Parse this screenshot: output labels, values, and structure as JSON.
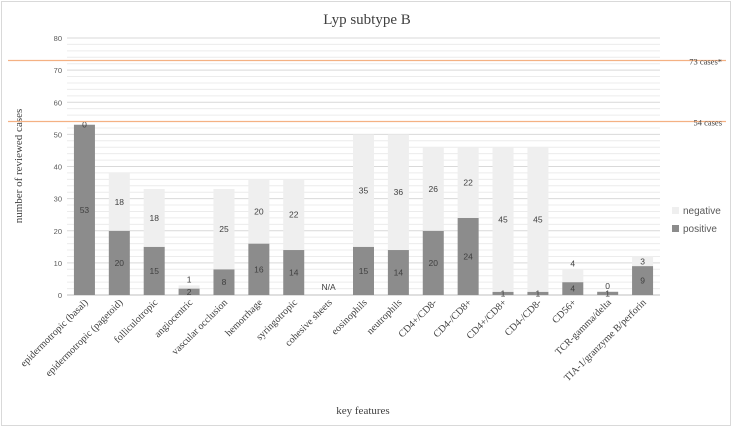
{
  "chart_data": {
    "type": "bar",
    "stacked": true,
    "title": "Lyp subtype B",
    "xlabel": "key features",
    "ylabel": "number of reviewed cases",
    "ylim": [
      0,
      80
    ],
    "y_ticks": [
      0,
      10,
      20,
      30,
      40,
      50,
      60,
      70,
      80
    ],
    "grid": "horizontal",
    "legend_position": "right",
    "categories": [
      "epidermotropic (basal)",
      "epidermotropic (pagetoid)",
      "folliculotropic",
      "angiocentric",
      "vascular occlusion",
      "hemorrhage",
      "syringotropic",
      "cohesive sheets",
      "eosinophils",
      "neutrophils",
      "CD4+/CD8-",
      "CD4-/CD8+",
      "CD4+/CD8+",
      "CD4-/CD8-",
      "CD56+",
      "TCR-gamma/delta",
      "TIA-1/granzyme B/perforin"
    ],
    "series": [
      {
        "name": "positive",
        "color": "#8c8c8c",
        "values": [
          53,
          20,
          15,
          2,
          8,
          16,
          14,
          null,
          15,
          14,
          20,
          24,
          1,
          1,
          4,
          1,
          9
        ],
        "labels": [
          "53",
          "20",
          "15",
          "2",
          "8",
          "16",
          "14",
          "",
          "15",
          "14",
          "20",
          "24",
          "1",
          "1",
          "4",
          "1",
          "9"
        ]
      },
      {
        "name": "negative",
        "color": "#efefef",
        "values": [
          0,
          18,
          18,
          1,
          25,
          20,
          22,
          null,
          35,
          36,
          26,
          22,
          45,
          45,
          4,
          0,
          3
        ],
        "labels": [
          "0",
          "18",
          "18",
          "1",
          "25",
          "20",
          "22",
          "",
          "35",
          "36",
          "26",
          "22",
          "45",
          "45",
          "4",
          "0",
          "3"
        ]
      }
    ],
    "special_labels": [
      {
        "category": "cohesive sheets",
        "text": "N/A"
      }
    ],
    "reference_lines": [
      {
        "value": 73,
        "label": "73 cases*",
        "color": "#f4b183"
      },
      {
        "value": 54,
        "label": "54 cases",
        "color": "#f4b183"
      }
    ]
  }
}
